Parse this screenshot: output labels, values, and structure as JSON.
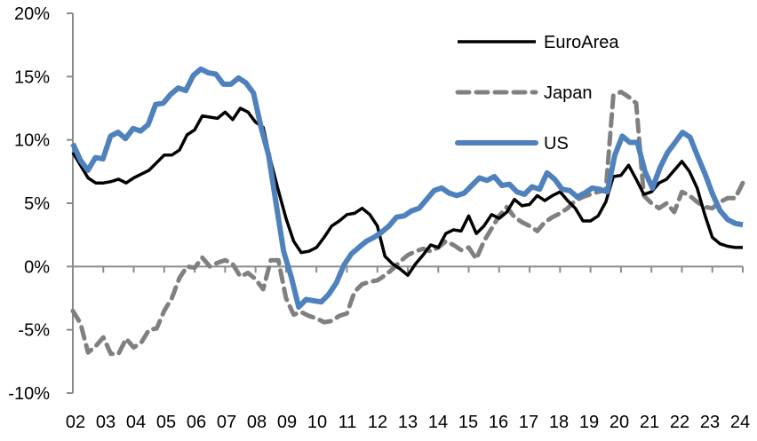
{
  "chart_data": {
    "type": "line",
    "title": "",
    "xlabel": "",
    "ylabel": "",
    "ylim": [
      -10,
      20
    ],
    "y_ticks": [
      20,
      15,
      10,
      5,
      0,
      -5,
      -10
    ],
    "y_tick_labels": [
      "20%",
      "15%",
      "10%",
      "5%",
      "0%",
      "-5%",
      "-10%"
    ],
    "x_tick_labels": [
      "02",
      "03",
      "04",
      "05",
      "06",
      "07",
      "08",
      "09",
      "10",
      "11",
      "12",
      "13",
      "14",
      "15",
      "16",
      "17",
      "18",
      "19",
      "20",
      "21",
      "22",
      "23",
      "24"
    ],
    "x_start_year": 2002,
    "frequency": "quarterly",
    "grid": false,
    "legend_position": "top-right",
    "series": [
      {
        "name": "EuroArea",
        "color": "#000000",
        "style": "solid",
        "values": [
          9.0,
          8.0,
          7.0,
          6.6,
          6.6,
          6.7,
          6.9,
          6.6,
          7.0,
          7.3,
          7.6,
          8.2,
          8.8,
          8.8,
          9.2,
          10.4,
          10.8,
          11.9,
          11.8,
          11.7,
          12.2,
          11.6,
          12.5,
          12.2,
          11.4,
          11.0,
          8.3,
          6.0,
          3.8,
          2.0,
          1.1,
          1.2,
          1.5,
          2.3,
          3.2,
          3.6,
          4.1,
          4.2,
          4.6,
          4.1,
          3.2,
          0.8,
          0.2,
          -0.2,
          -0.7,
          0.2,
          0.9,
          1.7,
          1.5,
          2.6,
          2.9,
          2.8,
          4.0,
          2.6,
          3.2,
          4.1,
          3.8,
          4.3,
          5.3,
          4.8,
          4.9,
          5.6,
          5.2,
          5.6,
          5.9,
          5.2,
          4.6,
          3.6,
          3.6,
          4.0,
          5.1,
          7.1,
          7.2,
          8.0,
          6.9,
          5.7,
          5.9,
          6.6,
          6.9,
          7.6,
          8.3,
          7.5,
          6.2,
          4.1,
          2.3,
          1.8,
          1.6,
          1.5,
          1.5
        ],
        "values_note": "estimated"
      },
      {
        "name": "Japan",
        "color": "#808080",
        "style": "dashed",
        "values": [
          -3.5,
          -4.5,
          -6.8,
          -6.3,
          -5.6,
          -6.9,
          -6.9,
          -5.7,
          -6.4,
          -6.0,
          -5.0,
          -4.9,
          -3.5,
          -2.5,
          -0.9,
          0.0,
          -0.1,
          0.7,
          0.0,
          0.3,
          0.5,
          0.2,
          -0.8,
          -0.5,
          -1.0,
          -1.8,
          0.5,
          0.5,
          -2.5,
          -3.8,
          -3.6,
          -3.9,
          -4.1,
          -4.4,
          -4.3,
          -3.9,
          -3.7,
          -2.0,
          -1.4,
          -1.2,
          -1.1,
          -0.7,
          -0.2,
          0.4,
          0.9,
          1.2,
          1.4,
          1.2,
          1.5,
          2.0,
          1.7,
          1.3,
          1.5,
          0.6,
          2.0,
          3.0,
          4.0,
          4.7,
          3.9,
          3.5,
          3.2,
          2.8,
          3.5,
          3.9,
          4.2,
          4.6,
          5.2,
          5.5,
          5.7,
          5.9,
          6.0,
          13.5,
          13.8,
          13.4,
          12.9,
          5.6,
          5.0,
          4.6,
          5.0,
          4.3,
          5.9,
          5.6,
          5.1,
          4.7,
          4.6,
          5.1,
          5.4,
          5.4,
          6.6
        ],
        "values_note": "estimated"
      },
      {
        "name": "US",
        "color": "#4F81BD",
        "style": "solid-thick",
        "values": [
          9.7,
          8.4,
          7.6,
          8.6,
          8.5,
          10.3,
          10.6,
          10.1,
          10.9,
          10.7,
          11.2,
          12.8,
          12.9,
          13.6,
          14.1,
          13.9,
          15.1,
          15.6,
          15.3,
          15.2,
          14.4,
          14.4,
          14.9,
          14.5,
          13.7,
          11.0,
          8.8,
          5.0,
          1.2,
          -0.8,
          -3.2,
          -2.6,
          -2.7,
          -2.8,
          -2.2,
          -1.3,
          0.1,
          1.0,
          1.5,
          2.0,
          2.3,
          2.7,
          3.2,
          3.9,
          4.0,
          4.4,
          4.6,
          5.3,
          6.0,
          6.2,
          5.8,
          5.6,
          5.8,
          6.4,
          7.0,
          6.8,
          7.1,
          6.4,
          6.5,
          5.9,
          5.7,
          6.3,
          6.1,
          7.4,
          6.9,
          6.1,
          6.0,
          5.5,
          5.8,
          6.2,
          6.1,
          5.9,
          8.8,
          10.3,
          9.8,
          9.8,
          7.5,
          6.2,
          7.8,
          9.0,
          9.8,
          10.6,
          10.2,
          8.7,
          7.3,
          5.7,
          4.4,
          3.7,
          3.4,
          3.3
        ],
        "values_note": "estimated"
      }
    ]
  }
}
